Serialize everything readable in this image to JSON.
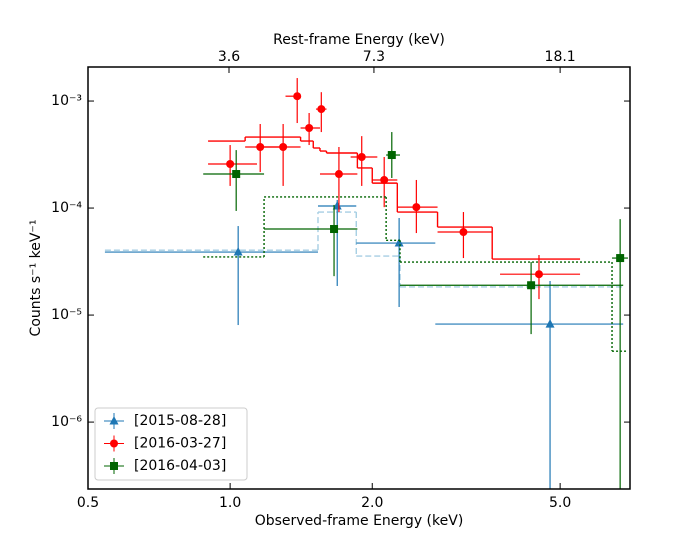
{
  "chart_data": {
    "type": "errorbar",
    "xlabel": "Observed-frame Energy (keV)",
    "ylabel": "Counts s⁻¹ keV⁻¹",
    "x2label": "Rest-frame Energy (keV)",
    "xscale": "log",
    "yscale": "log",
    "xlim": [
      0.5,
      7.03
    ],
    "ylim": [
      2.37e-07,
      0.00208
    ],
    "x2lim": [
      1.81,
      25.45
    ],
    "xticks": [
      {
        "value": 0.5,
        "label": "0.5"
      },
      {
        "value": 1.0,
        "label": "1.0"
      },
      {
        "value": 2.0,
        "label": "2.0"
      },
      {
        "value": 5.0,
        "label": "5.0"
      }
    ],
    "x2ticks": [
      3.6,
      7.3,
      18.1
    ],
    "yticks": [
      {
        "value": 1e-06,
        "label": "10⁻⁶"
      },
      {
        "value": 1e-05,
        "label": "10⁻⁵"
      },
      {
        "value": 0.0001,
        "label": "10⁻⁴"
      },
      {
        "value": 0.001,
        "label": "10⁻³"
      }
    ],
    "legend": "lower left",
    "series": [
      {
        "name": "[2015-08-28]",
        "color": "#1f77b4",
        "marker": "triangle",
        "x": [
          1.04,
          1.686,
          2.28,
          4.76
        ],
        "x_low": [
          0.543,
          1.535,
          1.85,
          2.72
        ],
        "x_high": [
          1.535,
          1.85,
          2.72,
          6.8
        ],
        "values": [
          3.88e-05,
          0.0001045,
          4.71e-05,
          8.24e-06
        ],
        "y_low": [
          8.07e-06,
          1.87e-05,
          1.19e-05,
          null
        ],
        "y_high": [
          6.79e-05,
          0.000119,
          8.07e-05,
          2.08e-05
        ],
        "model": {
          "color": "#a6cee3",
          "linestyle": "dashed",
          "edges": [
            0.543,
            1.535,
            1.85,
            2.29,
            6.8
          ],
          "values": [
            4.04e-05,
            9.18e-05,
            3.56e-05,
            1.83e-05
          ]
        }
      },
      {
        "name": "[2016-03-27]",
        "color": "#ff0000",
        "marker": "circle",
        "x": [
          1.0,
          1.158,
          1.295,
          1.387,
          1.47,
          1.56,
          1.7,
          1.9,
          2.12,
          2.48,
          3.12,
          4.51
        ],
        "x_low": [
          0.898,
          1.076,
          1.14,
          1.31,
          1.41,
          1.52,
          1.55,
          1.8,
          2.0,
          2.26,
          2.75,
          3.73
        ],
        "x_high": [
          1.14,
          1.31,
          1.41,
          1.41,
          1.55,
          1.6,
          1.86,
          2.05,
          2.26,
          2.75,
          3.59,
          5.51
        ],
        "values": [
          0.000258,
          0.000372,
          0.000372,
          0.00111,
          0.00056,
          0.000841,
          0.000208,
          0.0003,
          0.000183,
          0.000102,
          5.97e-05,
          2.41e-05
        ],
        "y_low": [
          0.000161,
          0.000217,
          0.000161,
          0.000623,
          0.000388,
          0.000513,
          9.18e-05,
          0.000161,
          0.000102,
          5.84e-05,
          3.41e-05,
          1.41e-05
        ],
        "y_high": [
          0.000388,
          0.00061,
          0.00061,
          0.00164,
          0.000773,
          0.00121,
          0.000372,
          0.00047,
          0.0003,
          0.000183,
          9.18e-05,
          3.64e-05
        ],
        "model": {
          "color": "#ff0000",
          "linestyle": "solid",
          "edges": [
            0.898,
            1.076,
            1.41,
            1.5,
            1.55,
            1.6,
            1.86,
            2.0,
            2.26,
            2.75,
            3.59,
            5.51
          ],
          "values": [
            0.000423,
            0.000461,
            0.000423,
            0.000364,
            0.000341,
            0.000327,
            0.000237,
            0.000171,
            9.18e-05,
            6.64e-05,
            3.34e-05
          ]
        }
      },
      {
        "name": "[2016-04-03]",
        "color": "#006400",
        "marker": "square",
        "x": [
          1.03,
          1.66,
          2.2,
          4.34,
          6.7
        ],
        "x_low": [
          0.877,
          1.18,
          2.14,
          2.29,
          6.44
        ],
        "x_high": [
          1.18,
          1.86,
          2.29,
          6.8,
          6.96
        ],
        "values": [
          0.000208,
          6.37e-05,
          0.000313,
          1.9e-05,
          3.41e-05
        ],
        "y_low": [
          9.4e-05,
          2.31e-05,
          0.000191,
          6.64e-06,
          null
        ],
        "y_high": [
          0.000348,
          0.000107,
          0.000513,
          3.13e-05,
          7.89e-05
        ],
        "model": {
          "color": "#006400",
          "linestyle": "dotted",
          "edges": [
            0.877,
            1.18,
            2.14,
            2.29,
            6.44,
            6.96
          ],
          "values": [
            3.49e-05,
            0.000127,
            5e-05,
            3.13e-05,
            4.6e-06
          ]
        }
      }
    ]
  }
}
